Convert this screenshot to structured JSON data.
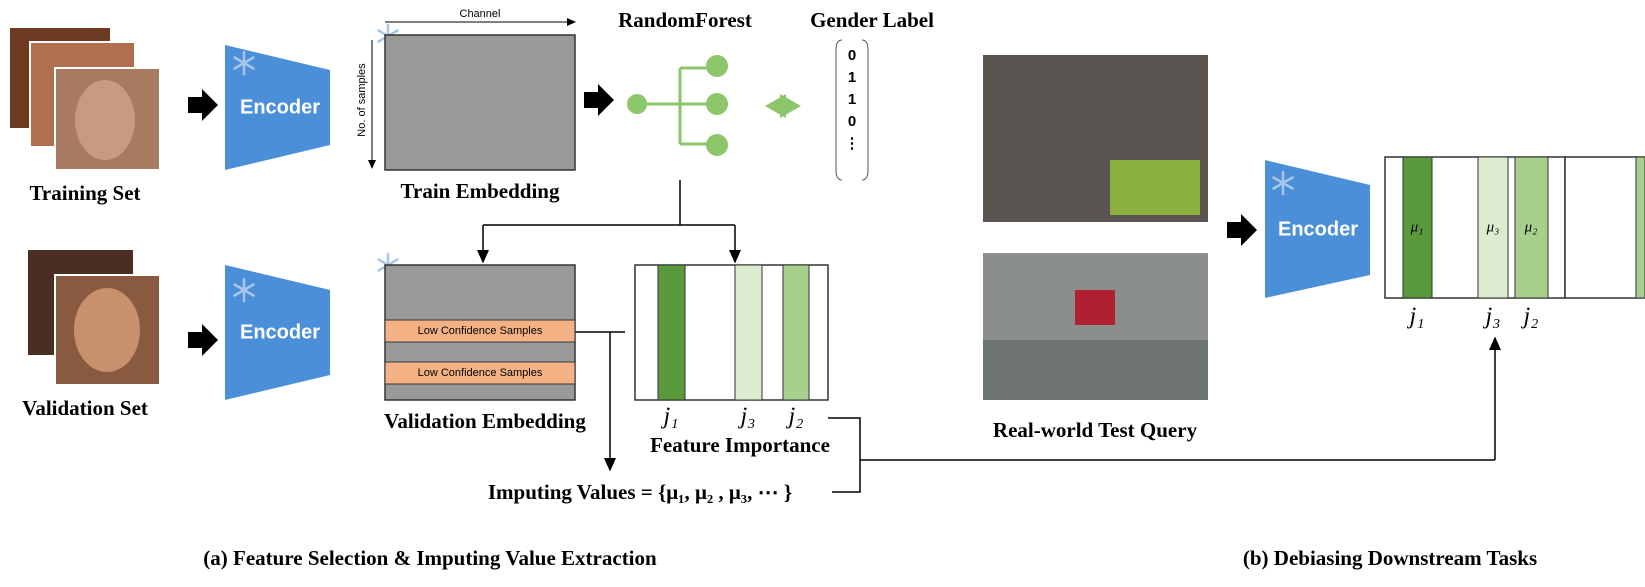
{
  "panel_a": {
    "caption": "(a) Feature Selection & Imputing Value Extraction",
    "training_set": "Training Set",
    "validation_set": "Validation Set",
    "encoder_top": "Encoder",
    "encoder_bottom": "Encoder",
    "channel": "Channel",
    "samples": "No. of samples",
    "train_embedding": "Train Embedding",
    "random_forest": "RandomForest",
    "gender_label": {
      "title": "Gender Label",
      "values": [
        "0",
        "1",
        "1",
        "0",
        "⋮"
      ]
    },
    "low_confidence": [
      "Low Confidence Samples",
      "Low Confidence Samples"
    ],
    "validation_embedding": "Validation Embedding",
    "feature_labels": [
      "j₁",
      "j₃",
      "j₂"
    ],
    "feature_importance": "Feature Importance",
    "imputing_values": "Imputing Values = {μ₁, μ₂ , μ₃, ⋯ }"
  },
  "panel_b": {
    "caption": "(b) Debiasing Downstream Tasks",
    "test_query": "Real-world Test Query",
    "encoder": "Encoder",
    "bar_labels": [
      "μ₁",
      "μ₃",
      "μ₂"
    ],
    "feature_labels": [
      "j₁",
      "j₃",
      "j₂"
    ]
  }
}
